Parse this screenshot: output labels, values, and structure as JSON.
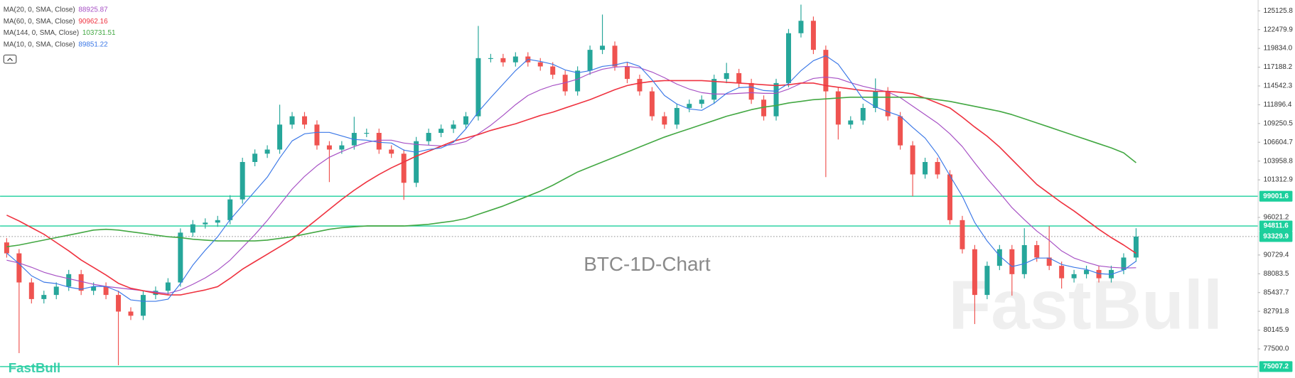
{
  "chart_data": {
    "type": "candlestick",
    "title": "BTC-1D-Chart",
    "watermark": "FastBull",
    "logo": "FastBull",
    "up_color": "#26a69a",
    "down_color": "#ef5350",
    "open": [
      92500,
      90960,
      86860,
      84520,
      85100,
      86270,
      88030,
      85690,
      86270,
      85100,
      82760,
      82170,
      85100,
      85690,
      86860,
      93880,
      95050,
      95290,
      95640,
      98560,
      103830,
      105000,
      105580,
      109100,
      110270,
      109100,
      106170,
      105580,
      106170,
      107930,
      107930,
      105580,
      105000,
      100900,
      106760,
      107930,
      108510,
      109100,
      110270,
      118460,
      118460,
      117870,
      118690,
      117870,
      117290,
      116120,
      113780,
      116700,
      119630,
      120210,
      117290,
      115530,
      113780,
      110270,
      109100,
      111440,
      112020,
      112610,
      115530,
      116350,
      114950,
      112610,
      110270,
      114950,
      121970,
      123720,
      119630,
      113780,
      109100,
      109680,
      111440,
      113780,
      110270,
      106170,
      102080,
      103830,
      102080,
      95640,
      91540,
      85100,
      89200,
      91540,
      88030,
      92120,
      90370,
      89200,
      87450,
      88030,
      88620,
      87450,
      88620,
      90370
    ],
    "high": [
      93100,
      91560,
      87460,
      85700,
      86870,
      88630,
      88630,
      86870,
      86870,
      85700,
      83360,
      85700,
      86290,
      87460,
      94480,
      95650,
      95890,
      96240,
      99160,
      104430,
      105600,
      106180,
      111900,
      110870,
      110870,
      109700,
      106770,
      106770,
      110200,
      108530,
      108530,
      106180,
      105600,
      107360,
      108530,
      109110,
      109700,
      110870,
      123000,
      119060,
      119060,
      119290,
      119290,
      118470,
      117890,
      116720,
      117300,
      120230,
      124600,
      120810,
      117890,
      116130,
      114380,
      110870,
      112040,
      112620,
      113210,
      116130,
      117800,
      116950,
      115550,
      113210,
      115550,
      122570,
      126000,
      124320,
      120230,
      114380,
      110280,
      112040,
      115600,
      114380,
      110870,
      106770,
      104430,
      104430,
      102680,
      96240,
      92140,
      89800,
      92140,
      92140,
      94500,
      92720,
      94800,
      89800,
      88630,
      89220,
      89220,
      89220,
      90970,
      94500
    ],
    "low": [
      90360,
      76900,
      83900,
      83900,
      84500,
      85670,
      85090,
      85090,
      84500,
      75200,
      81570,
      81570,
      84500,
      85090,
      86260,
      93280,
      94450,
      94690,
      95040,
      97960,
      103230,
      104400,
      104980,
      108500,
      108500,
      105570,
      101000,
      104980,
      105570,
      107330,
      104980,
      104400,
      98500,
      100300,
      106160,
      107330,
      107910,
      108500,
      109670,
      117860,
      117270,
      117270,
      117270,
      116690,
      115520,
      113180,
      113180,
      116100,
      119030,
      116690,
      114930,
      113180,
      109670,
      108500,
      108500,
      110840,
      111420,
      112010,
      114930,
      114350,
      112010,
      109670,
      109670,
      114350,
      121370,
      119030,
      101700,
      107000,
      108500,
      109080,
      110840,
      109670,
      105570,
      99000,
      101480,
      101480,
      95040,
      90940,
      81000,
      84500,
      88600,
      85000,
      87430,
      89770,
      88600,
      86000,
      86850,
      87430,
      86850,
      86850,
      88020,
      89770
    ],
    "close": [
      90960,
      86860,
      84520,
      85100,
      86270,
      88030,
      85690,
      86270,
      85100,
      82760,
      82170,
      85100,
      85690,
      86860,
      93880,
      95050,
      95290,
      95640,
      98560,
      103830,
      105000,
      105580,
      109100,
      110270,
      109100,
      106170,
      105580,
      106170,
      107930,
      107930,
      105580,
      105000,
      100900,
      106760,
      107930,
      108510,
      109100,
      110270,
      118460,
      118460,
      117870,
      118690,
      117870,
      117290,
      116120,
      113780,
      116700,
      119630,
      120210,
      117290,
      115530,
      113780,
      110270,
      109100,
      111440,
      112020,
      112610,
      115530,
      116350,
      114950,
      112610,
      110270,
      114950,
      121970,
      123720,
      119630,
      113780,
      109100,
      109680,
      111440,
      113780,
      110270,
      106170,
      102080,
      103830,
      102080,
      95640,
      91540,
      85100,
      89200,
      91540,
      88030,
      92120,
      90370,
      89200,
      87450,
      88030,
      88620,
      87450,
      88620,
      90370,
      93330
    ],
    "series": [
      {
        "name": "MA(20, 0, SMA, Close)",
        "color": "#a64fc4",
        "legend_value": 88925.87,
        "values": [
          90000,
          89600,
          89000,
          88300,
          87800,
          87400,
          87000,
          86600,
          86300,
          86100,
          85900,
          85700,
          85500,
          85300,
          85800,
          86600,
          87500,
          88600,
          90000,
          91800,
          93600,
          95600,
          97800,
          100000,
          101800,
          103300,
          104500,
          105300,
          106000,
          106600,
          106900,
          106900,
          106500,
          106300,
          106200,
          106100,
          106300,
          106700,
          107800,
          109000,
          110400,
          111900,
          113200,
          114000,
          114600,
          115000,
          115500,
          116300,
          116900,
          117200,
          117300,
          117100,
          116500,
          115700,
          114800,
          114100,
          113600,
          113400,
          113400,
          113500,
          113600,
          113500,
          113500,
          114100,
          114900,
          115600,
          115800,
          115600,
          115000,
          114500,
          114100,
          113700,
          112900,
          111700,
          110500,
          109300,
          107800,
          106000,
          103700,
          101500,
          99500,
          97400,
          95700,
          94100,
          92800,
          91300,
          90300,
          89700,
          89200,
          89000,
          88900,
          88930
        ]
      },
      {
        "name": "MA(60, 0, SMA, Close)",
        "color": "#ef3340",
        "legend_value": 90962.16,
        "values": [
          96340,
          95520,
          94580,
          93650,
          92480,
          91310,
          90020,
          88970,
          87910,
          86740,
          86040,
          85690,
          85340,
          85100,
          85100,
          85460,
          85810,
          86270,
          87440,
          88730,
          89790,
          90840,
          91890,
          92950,
          94350,
          95750,
          97160,
          98560,
          99850,
          101020,
          102070,
          103010,
          103830,
          104650,
          105350,
          106050,
          106760,
          107220,
          107690,
          108280,
          108750,
          109210,
          109800,
          110380,
          110850,
          111440,
          112020,
          112610,
          113310,
          114010,
          114600,
          114950,
          115180,
          115300,
          115300,
          115300,
          115300,
          115180,
          115060,
          114950,
          114830,
          114710,
          114600,
          114710,
          114950,
          114950,
          114600,
          114360,
          114130,
          113890,
          113780,
          113780,
          113660,
          113430,
          112840,
          112140,
          111440,
          110150,
          108750,
          107460,
          105940,
          104180,
          102420,
          100670,
          99380,
          98100,
          96930,
          95640,
          94350,
          93180,
          92130,
          90960
        ]
      },
      {
        "name": "MA(144, 0, SMA, Close)",
        "color": "#43a843",
        "legend_value": 103731.51,
        "values": [
          91890,
          92130,
          92480,
          92830,
          93180,
          93530,
          93880,
          94240,
          94350,
          94240,
          94000,
          93770,
          93530,
          93300,
          93180,
          92950,
          92830,
          92710,
          92710,
          92710,
          92710,
          92830,
          93060,
          93300,
          93650,
          94000,
          94350,
          94580,
          94700,
          94820,
          94820,
          94820,
          94820,
          94930,
          95050,
          95290,
          95520,
          95870,
          96460,
          97040,
          97630,
          98330,
          99030,
          99730,
          100550,
          101490,
          102420,
          103130,
          103830,
          104530,
          105230,
          105940,
          106640,
          107340,
          107930,
          108510,
          109100,
          109680,
          110270,
          110730,
          111200,
          111550,
          111790,
          112140,
          112370,
          112610,
          112720,
          112840,
          112960,
          112960,
          112960,
          112960,
          112960,
          112960,
          112840,
          112610,
          112370,
          112020,
          111670,
          111320,
          110970,
          110500,
          109920,
          109330,
          108750,
          108160,
          107570,
          106990,
          106400,
          105820,
          105120,
          103730
        ]
      },
      {
        "name": "MA(10, 0, SMA, Close)",
        "color": "#3b78e7",
        "legend_value": 89851.22,
        "values": [
          91000,
          89500,
          87800,
          86900,
          86700,
          86200,
          85900,
          86300,
          86300,
          85600,
          84400,
          84200,
          84200,
          84500,
          86700,
          89300,
          91400,
          93300,
          95700,
          97700,
          99700,
          101700,
          104400,
          106800,
          107800,
          108000,
          108000,
          107500,
          107000,
          106900,
          106600,
          106500,
          105500,
          105200,
          105600,
          105800,
          106600,
          108500,
          110900,
          112900,
          114800,
          116700,
          118300,
          118000,
          117600,
          116800,
          116400,
          116700,
          117300,
          117500,
          117900,
          117300,
          115400,
          113200,
          112000,
          111300,
          111100,
          112100,
          113500,
          114300,
          114400,
          113900,
          113800,
          114900,
          116700,
          118100,
          118800,
          117600,
          115200,
          112700,
          111600,
          110900,
          110300,
          108700,
          107200,
          104900,
          101900,
          99000,
          95300,
          92700,
          90600,
          89100,
          89500,
          90300,
          90300,
          89400,
          89000,
          88700,
          88100,
          88000,
          88600,
          89850
        ]
      }
    ],
    "price_lines": [
      {
        "value": 99001.6,
        "color": "#1ccf9c"
      },
      {
        "value": 94811.6,
        "color": "#1ccf9c"
      },
      {
        "value": 75007.2,
        "color": "#1ccf9c"
      }
    ],
    "last_price": 93329.9,
    "last_price_color": "#1ccf9c",
    "ylim": [
      73400,
      126650
    ],
    "yticks": [
      125125.8,
      122479.9,
      {
        "value": 119834,
        "label": "119834.0"
      },
      117188.2,
      114542.3,
      111896.4,
      109250.5,
      106604.7,
      103958.8,
      101312.9,
      96021.2,
      90729.4,
      88083.5,
      85437.7,
      82791.8,
      80145.9,
      {
        "value": 77500,
        "label": "77500.0"
      }
    ]
  }
}
